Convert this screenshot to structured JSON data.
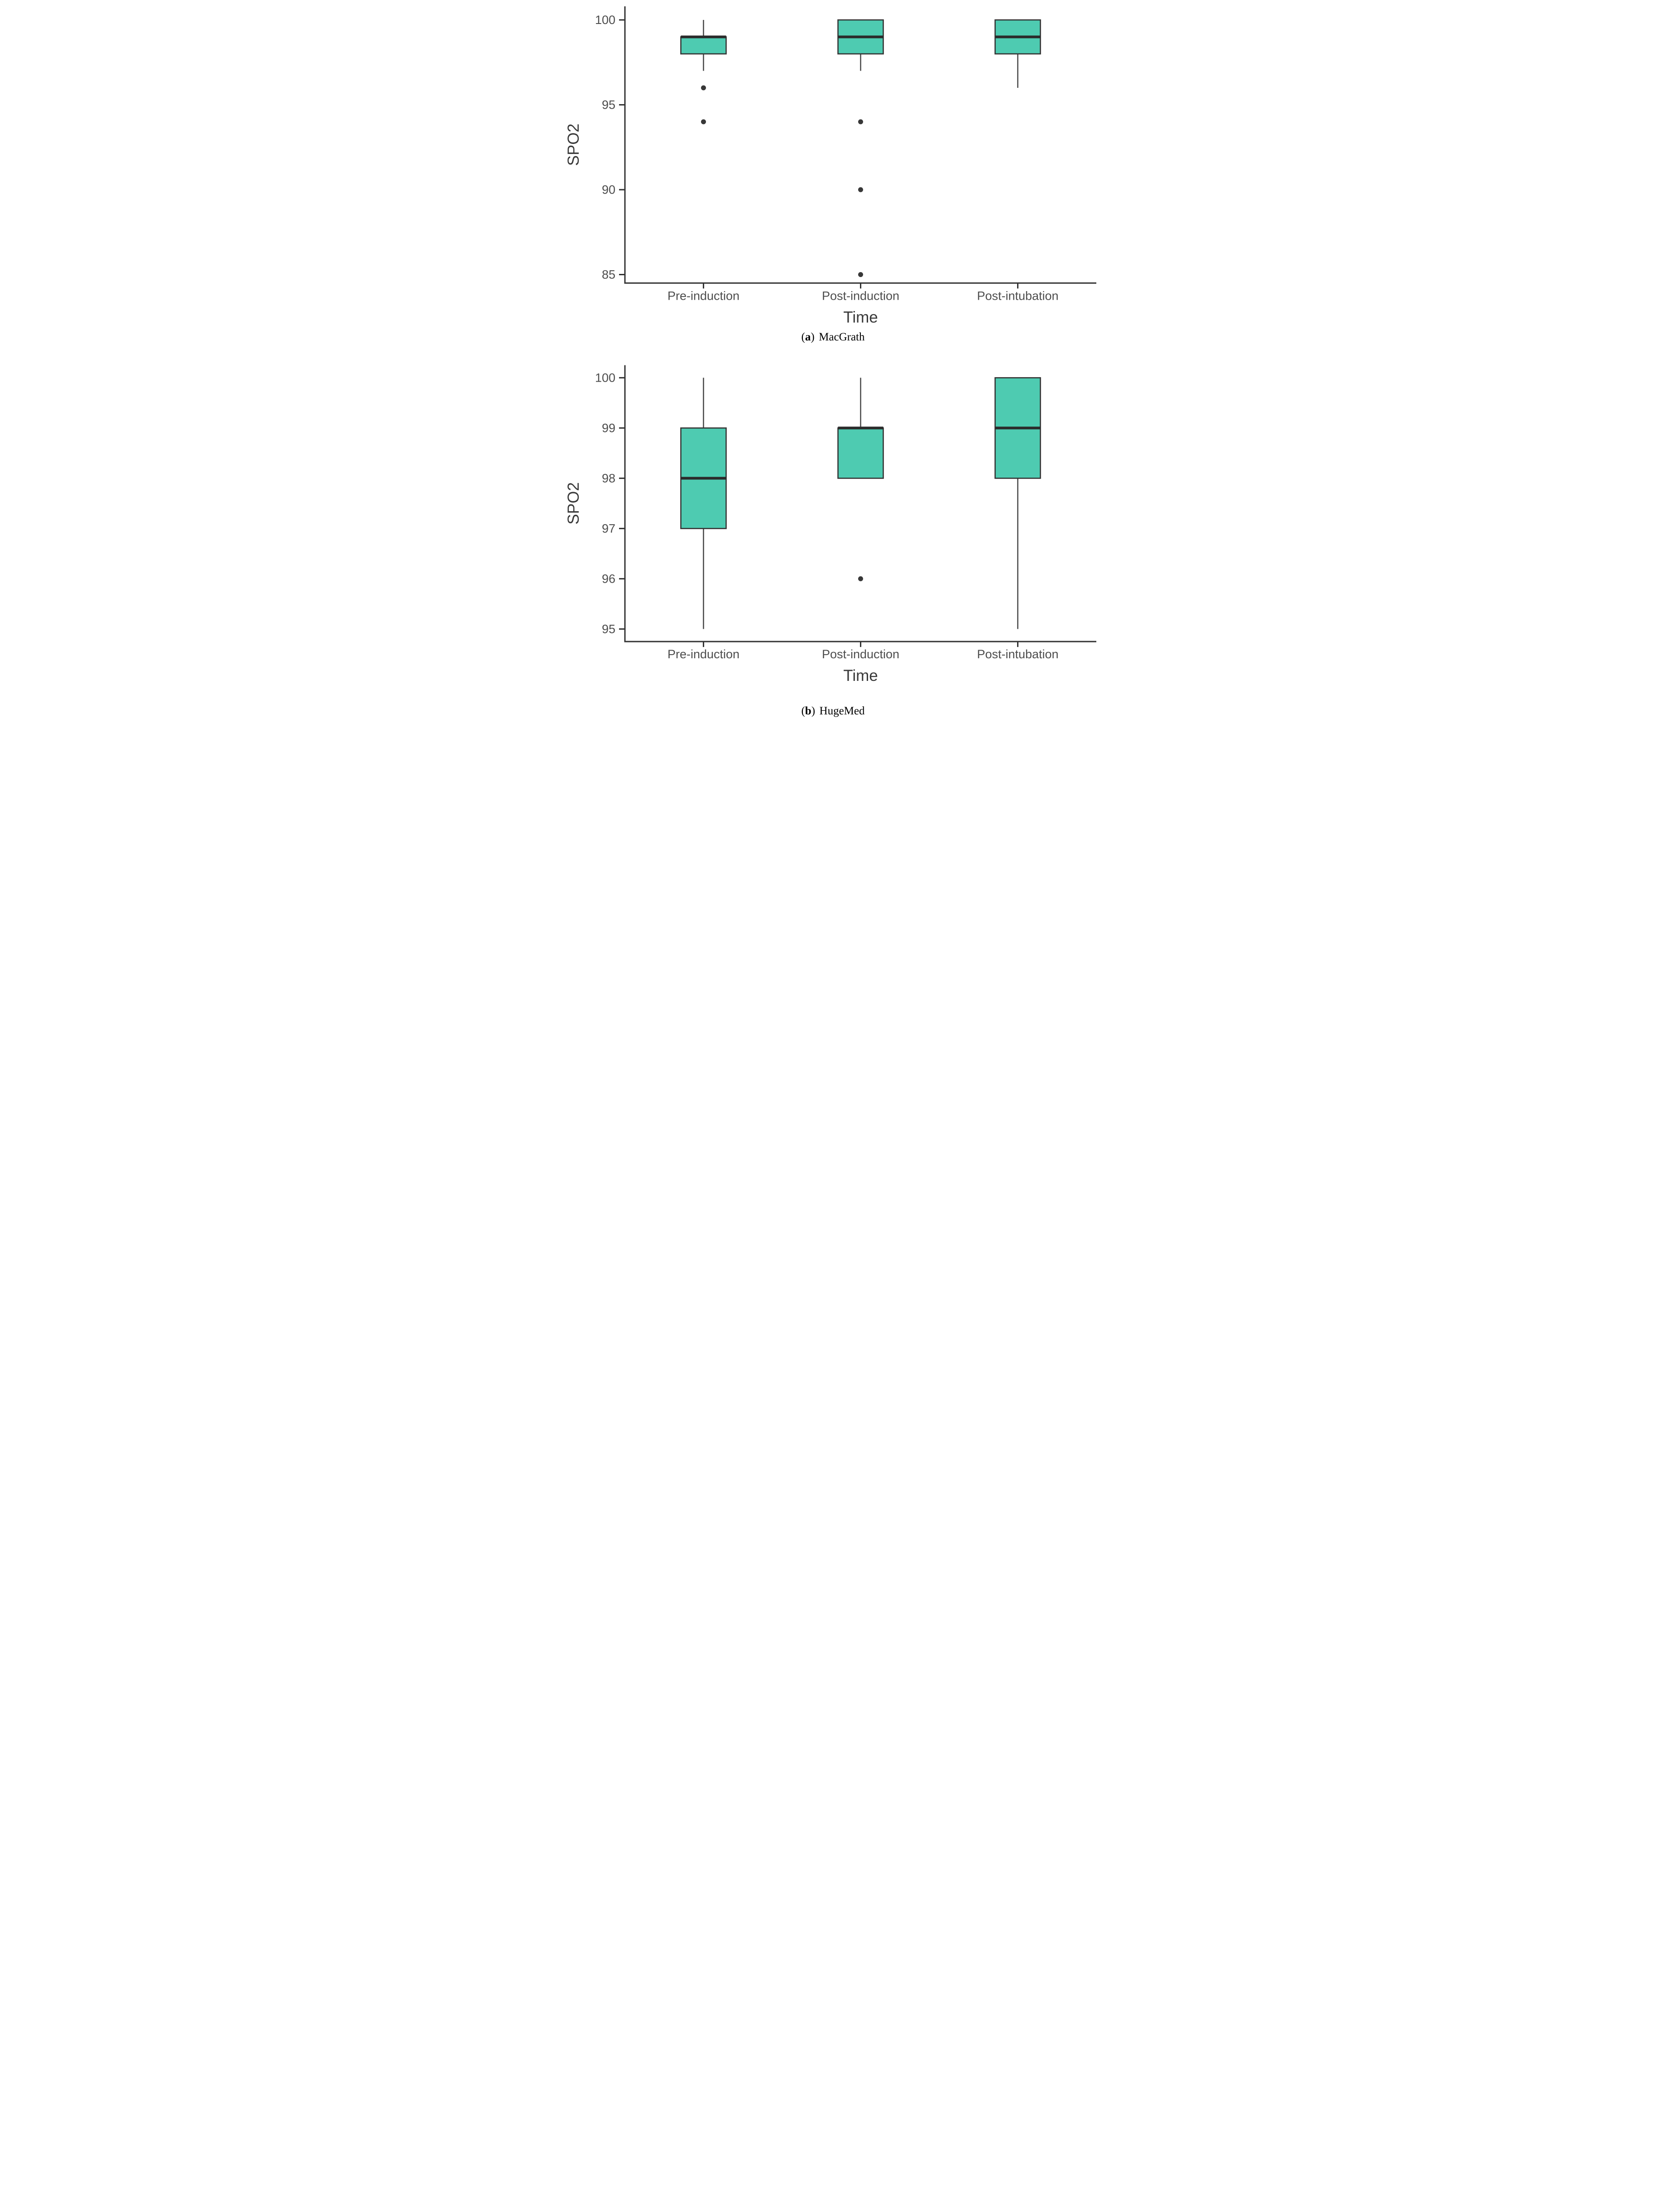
{
  "palette": {
    "background": "#ffffff",
    "box_fill": "#4ecbb1",
    "box_border": "#333333",
    "median_color": "#2b2b2b",
    "whisker_color": "#4a4a4a",
    "axis_color": "#333333",
    "tick_label_color": "#4d4d4d",
    "axis_title_color": "#3a3a3a",
    "outlier_color": "#383838",
    "caption_color": "#000000"
  },
  "chart_data": [
    {
      "type": "boxplot",
      "device": "MacGrath",
      "caption": {
        "open": "(",
        "letter": "a",
        "close": ")",
        "label": "MacGrath"
      },
      "xlabel": "Time",
      "ylabel": "SPO2",
      "categories": [
        "Pre-induction",
        "Post-induction",
        "Post-intubation"
      ],
      "y_ticks": [
        100,
        95,
        90,
        85
      ],
      "ylim": [
        84.5,
        100.8
      ],
      "grid": false,
      "legend": false,
      "boxes": [
        {
          "category": "Pre-induction",
          "whisker_low": 97,
          "q1": 98,
          "median": 99,
          "q3": 99,
          "whisker_high": 100,
          "outliers": [
            96,
            94
          ]
        },
        {
          "category": "Post-induction",
          "whisker_low": 97,
          "q1": 98,
          "median": 99,
          "q3": 100,
          "whisker_high": 100,
          "outliers": [
            94,
            90,
            85
          ]
        },
        {
          "category": "Post-intubation",
          "whisker_low": 96,
          "q1": 98,
          "median": 99,
          "q3": 100,
          "whisker_high": 100,
          "outliers": []
        }
      ]
    },
    {
      "type": "boxplot",
      "device": "HugeMed",
      "caption": {
        "open": "(",
        "letter": "b",
        "close": ")",
        "label": "HugeMed"
      },
      "xlabel": "Time",
      "ylabel": "SPO2",
      "categories": [
        "Pre-induction",
        "Post-induction",
        "Post-intubation"
      ],
      "y_ticks": [
        100,
        99,
        98,
        97,
        96,
        95
      ],
      "ylim": [
        94.75,
        100.25
      ],
      "grid": false,
      "legend": false,
      "boxes": [
        {
          "category": "Pre-induction",
          "whisker_low": 95,
          "q1": 97,
          "median": 98,
          "q3": 99,
          "whisker_high": 100,
          "outliers": []
        },
        {
          "category": "Post-induction",
          "whisker_low": 98,
          "q1": 98,
          "median": 99,
          "q3": 99,
          "whisker_high": 100,
          "outliers": [
            96
          ]
        },
        {
          "category": "Post-intubation",
          "whisker_low": 95,
          "q1": 98,
          "median": 99,
          "q3": 100,
          "whisker_high": 100,
          "outliers": []
        }
      ]
    }
  ]
}
